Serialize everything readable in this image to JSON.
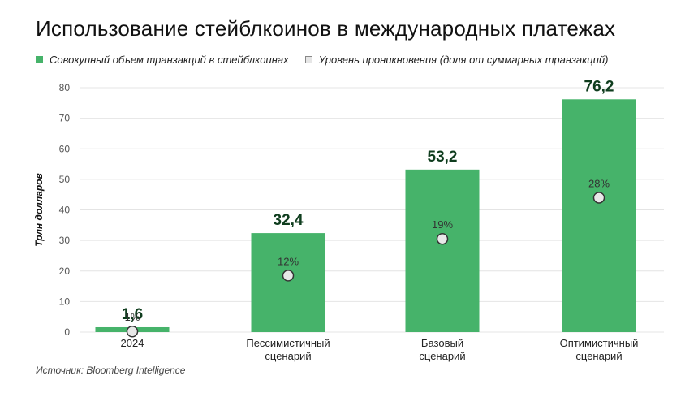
{
  "title": "Использование стейблкоинов в международных платежах",
  "legend": {
    "volume": "Совокупный объем транзакций в стейблкоинах",
    "penetration": "Уровень проникновения (доля от суммарных транзакций)"
  },
  "source": "Источник: Bloomberg Intelligence",
  "colors": {
    "bar": "#46b36a",
    "value_label": "#0f3d1e",
    "dot_fill": "#e8e8e8",
    "dot_stroke": "#333333"
  },
  "chart_data": {
    "type": "bar",
    "title": "Использование стейблкоинов в международных платежах",
    "ylabel": "Трлн долларов",
    "xlabel": "",
    "ylim": [
      0,
      80
    ],
    "yticks": [
      0,
      10,
      20,
      30,
      40,
      50,
      60,
      70,
      80
    ],
    "grid": true,
    "legend_position": "top-left",
    "categories": [
      [
        "2024"
      ],
      [
        "Пессимистичный",
        "сценарий"
      ],
      [
        "Базовый",
        "сценарий"
      ],
      [
        "Оптимистичный",
        "сценарий"
      ]
    ],
    "series": [
      {
        "name": "Совокупный объем транзакций в стейблкоинах",
        "type": "bar",
        "values": [
          1.6,
          32.4,
          53.2,
          76.2
        ],
        "labels": [
          "1,6",
          "32,4",
          "53,2",
          "76,2"
        ]
      },
      {
        "name": "Уровень проникновения (доля от суммарных транзакций)",
        "type": "scatter",
        "values_percent": [
          1,
          12,
          19,
          28
        ],
        "labels": [
          "1%",
          "12%",
          "19%",
          "28%"
        ],
        "plot_y": [
          0.2,
          18.5,
          30.5,
          44
        ]
      }
    ]
  }
}
